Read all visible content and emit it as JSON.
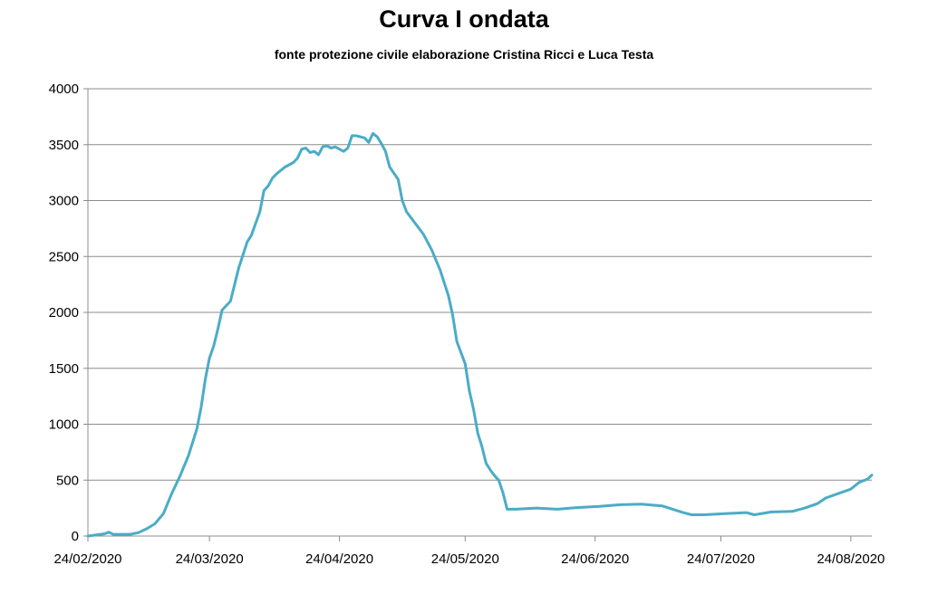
{
  "chart_data": {
    "type": "line",
    "title": "Curva I ondata",
    "subtitle": "fonte protezione civile elaborazione Cristina Ricci e Luca Testa",
    "xlabel": "",
    "ylabel": "",
    "ylim": [
      0,
      4000
    ],
    "yticks": [
      "0",
      "500",
      "1000",
      "1500",
      "2000",
      "2500",
      "3000",
      "3500",
      "4000"
    ],
    "x_range": [
      "2020-02-24",
      "2020-08-29"
    ],
    "xticks": [
      {
        "date": "2020-02-24",
        "label": "24/02/2020"
      },
      {
        "date": "2020-03-24",
        "label": "24/03/2020"
      },
      {
        "date": "2020-04-24",
        "label": "24/04/2020"
      },
      {
        "date": "2020-05-24",
        "label": "24/05/2020"
      },
      {
        "date": "2020-06-24",
        "label": "24/06/2020"
      },
      {
        "date": "2020-07-24",
        "label": "24/07/2020"
      },
      {
        "date": "2020-08-24",
        "label": "24/08/2020"
      }
    ],
    "grid": "horizontal",
    "legend": "none",
    "colors": {
      "line": "#4bacc6",
      "grid": "#8c8c8c",
      "axis": "#8c8c8c"
    },
    "series": [
      {
        "points": [
          [
            "2020-02-24",
            0
          ],
          [
            "2020-02-26",
            10
          ],
          [
            "2020-02-28",
            20
          ],
          [
            "2020-02-29",
            35
          ],
          [
            "2020-03-01",
            15
          ],
          [
            "2020-03-05",
            15
          ],
          [
            "2020-03-07",
            30
          ],
          [
            "2020-03-09",
            65
          ],
          [
            "2020-03-11",
            110
          ],
          [
            "2020-03-13",
            200
          ],
          [
            "2020-03-15",
            380
          ],
          [
            "2020-03-17",
            540
          ],
          [
            "2020-03-19",
            720
          ],
          [
            "2020-03-21",
            960
          ],
          [
            "2020-03-22",
            1150
          ],
          [
            "2020-03-23",
            1400
          ],
          [
            "2020-03-24",
            1590
          ],
          [
            "2020-03-25",
            1700
          ],
          [
            "2020-03-26",
            1850
          ],
          [
            "2020-03-27",
            2020
          ],
          [
            "2020-03-28",
            2060
          ],
          [
            "2020-03-29",
            2100
          ],
          [
            "2020-03-30",
            2250
          ],
          [
            "2020-03-31",
            2400
          ],
          [
            "2020-04-02",
            2630
          ],
          [
            "2020-04-03",
            2690
          ],
          [
            "2020-04-05",
            2900
          ],
          [
            "2020-04-06",
            3090
          ],
          [
            "2020-04-07",
            3130
          ],
          [
            "2020-04-08",
            3200
          ],
          [
            "2020-04-09",
            3240
          ],
          [
            "2020-04-11",
            3300
          ],
          [
            "2020-04-13",
            3340
          ],
          [
            "2020-04-14",
            3380
          ],
          [
            "2020-04-15",
            3460
          ],
          [
            "2020-04-16",
            3470
          ],
          [
            "2020-04-17",
            3430
          ],
          [
            "2020-04-18",
            3440
          ],
          [
            "2020-04-19",
            3410
          ],
          [
            "2020-04-20",
            3480
          ],
          [
            "2020-04-21",
            3490
          ],
          [
            "2020-04-22",
            3470
          ],
          [
            "2020-04-23",
            3480
          ],
          [
            "2020-04-24",
            3460
          ],
          [
            "2020-04-25",
            3440
          ],
          [
            "2020-04-26",
            3470
          ],
          [
            "2020-04-27",
            3580
          ],
          [
            "2020-04-28",
            3580
          ],
          [
            "2020-04-29",
            3570
          ],
          [
            "2020-04-30",
            3560
          ],
          [
            "2020-05-01",
            3520
          ],
          [
            "2020-05-02",
            3600
          ],
          [
            "2020-05-03",
            3570
          ],
          [
            "2020-05-04",
            3510
          ],
          [
            "2020-05-05",
            3440
          ],
          [
            "2020-05-06",
            3300
          ],
          [
            "2020-05-08",
            3190
          ],
          [
            "2020-05-09",
            3000
          ],
          [
            "2020-05-10",
            2900
          ],
          [
            "2020-05-12",
            2800
          ],
          [
            "2020-05-14",
            2700
          ],
          [
            "2020-05-16",
            2560
          ],
          [
            "2020-05-18",
            2380
          ],
          [
            "2020-05-20",
            2150
          ],
          [
            "2020-05-21",
            1980
          ],
          [
            "2020-05-22",
            1740
          ],
          [
            "2020-05-24",
            1540
          ],
          [
            "2020-05-25",
            1300
          ],
          [
            "2020-05-26",
            1130
          ],
          [
            "2020-05-27",
            920
          ],
          [
            "2020-05-28",
            800
          ],
          [
            "2020-05-29",
            650
          ],
          [
            "2020-05-30",
            590
          ],
          [
            "2020-05-31",
            540
          ],
          [
            "2020-06-01",
            500
          ],
          [
            "2020-06-02",
            390
          ],
          [
            "2020-06-03",
            240
          ],
          [
            "2020-06-05",
            240
          ],
          [
            "2020-06-10",
            250
          ],
          [
            "2020-06-15",
            240
          ],
          [
            "2020-06-20",
            255
          ],
          [
            "2020-06-25",
            265
          ],
          [
            "2020-06-30",
            280
          ],
          [
            "2020-07-05",
            285
          ],
          [
            "2020-07-10",
            270
          ],
          [
            "2020-07-15",
            210
          ],
          [
            "2020-07-17",
            190
          ],
          [
            "2020-07-20",
            190
          ],
          [
            "2020-07-25",
            200
          ],
          [
            "2020-07-30",
            210
          ],
          [
            "2020-08-01",
            190
          ],
          [
            "2020-08-05",
            215
          ],
          [
            "2020-08-10",
            220
          ],
          [
            "2020-08-13",
            250
          ],
          [
            "2020-08-16",
            290
          ],
          [
            "2020-08-18",
            340
          ],
          [
            "2020-08-21",
            380
          ],
          [
            "2020-08-24",
            420
          ],
          [
            "2020-08-26",
            480
          ],
          [
            "2020-08-28",
            510
          ],
          [
            "2020-08-29",
            545
          ]
        ]
      }
    ]
  }
}
